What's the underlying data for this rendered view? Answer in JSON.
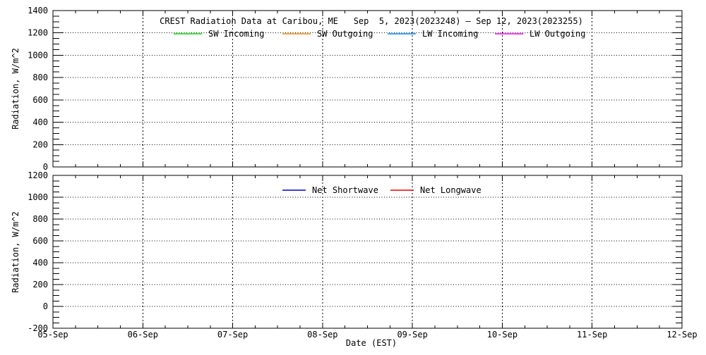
{
  "figure": {
    "title": "CREST Radiation Data at Caribou, ME   Sep  5, 2023(2023248) – Sep 12, 2023(2023255)",
    "xlabel": "Date (EST)"
  },
  "chart_data": [
    {
      "type": "line",
      "title": "CREST Radiation Data at Caribou, ME   Sep  5, 2023(2023248) – Sep 12, 2023(2023255)",
      "ylabel": "Radiation, W/m^2",
      "ylim": [
        0,
        1400
      ],
      "ytick_major": 200,
      "ytick_minor": 50,
      "x_ticks": [
        "05-Sep",
        "06-Sep",
        "07-Sep",
        "08-Sep",
        "09-Sep",
        "10-Sep",
        "11-Sep",
        "12-Sep"
      ],
      "x_minor_per_interval": 4,
      "show_x_tick_labels": false,
      "grid": true,
      "legend_position": "top-inside",
      "series": [
        {
          "name": "SW Incoming",
          "color": "#00dd00",
          "x": [],
          "values": []
        },
        {
          "name": "SW Outgoing",
          "color": "#ff8800",
          "x": [],
          "values": []
        },
        {
          "name": "LW Incoming",
          "color": "#0088ff",
          "x": [],
          "values": []
        },
        {
          "name": "LW Outgoing",
          "color": "#ff00ff",
          "x": [],
          "values": []
        }
      ]
    },
    {
      "type": "line",
      "xlabel": "Date (EST)",
      "ylabel": "Radiation, W/m^2",
      "ylim": [
        -200,
        1200
      ],
      "ytick_major": 200,
      "ytick_minor": 50,
      "x_ticks": [
        "05-Sep",
        "06-Sep",
        "07-Sep",
        "08-Sep",
        "09-Sep",
        "10-Sep",
        "11-Sep",
        "12-Sep"
      ],
      "x_minor_per_interval": 4,
      "show_x_tick_labels": true,
      "grid": true,
      "legend_position": "top-inside",
      "series": [
        {
          "name": "Net Shortwave",
          "color": "#0000cc",
          "x": [],
          "values": []
        },
        {
          "name": "Net Longwave",
          "color": "#ee0000",
          "x": [],
          "values": []
        }
      ]
    }
  ]
}
